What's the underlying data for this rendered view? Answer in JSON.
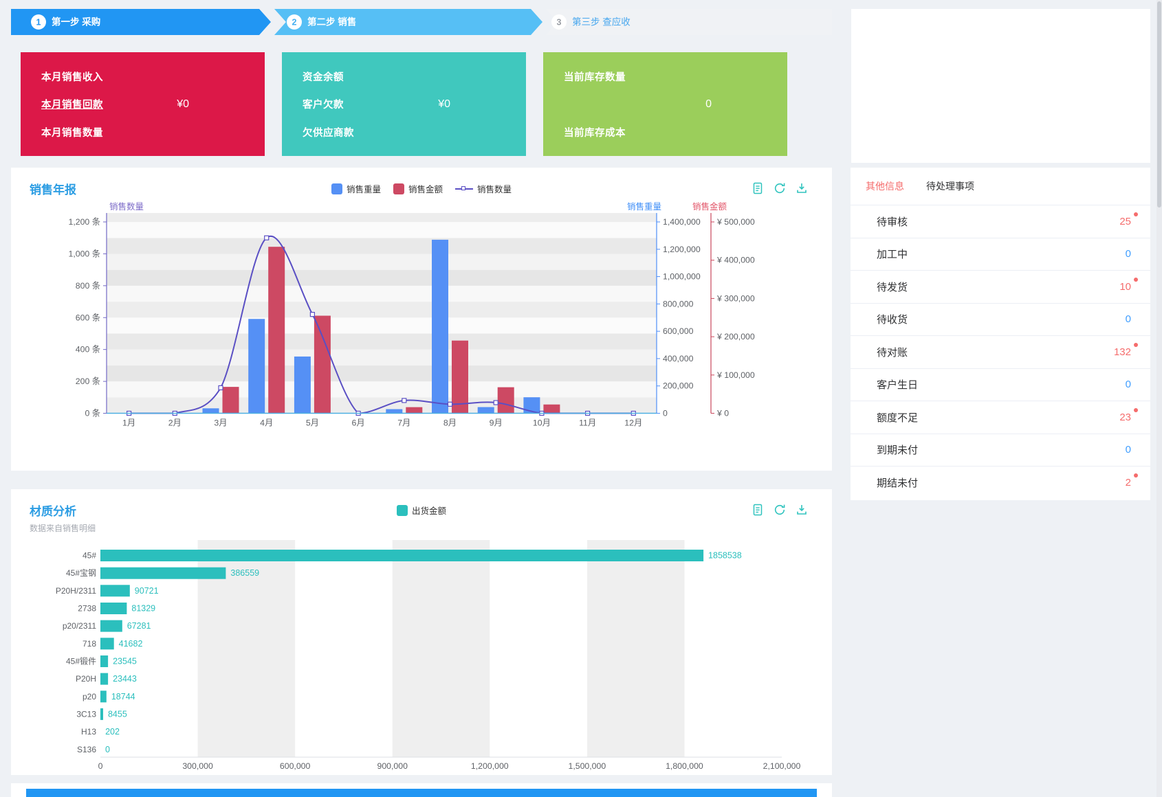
{
  "wizard": {
    "steps": [
      {
        "num": "1",
        "label": "第一步 采购",
        "bg": "#2196F3",
        "text_color": "#ffffff",
        "num_color": "#2196F3",
        "active": true
      },
      {
        "num": "2",
        "label": "第二步 销售",
        "bg": "#56BFF5",
        "text_color": "#ffffff",
        "num_color": "#42AEF0",
        "active": true
      },
      {
        "num": "3",
        "label": "第三步 查应收",
        "bg": "#F0F2F5",
        "text_color": "#47A7EE",
        "num_color": "#9A9EA5",
        "active": false
      }
    ]
  },
  "metric_cards": [
    {
      "bg": "#DC1848",
      "rows": [
        {
          "label": "本月销售收入",
          "value": "",
          "underline": false
        },
        {
          "label": "本月销售回款",
          "value": "¥0",
          "underline": true
        },
        {
          "label": "本月销售数量",
          "value": "",
          "underline": false
        }
      ]
    },
    {
      "bg": "#40C8BE",
      "rows": [
        {
          "label": "资金余额",
          "value": "",
          "underline": false
        },
        {
          "label": "客户欠款",
          "value": "¥0",
          "underline": false
        },
        {
          "label": "欠供应商款",
          "value": "",
          "underline": false
        }
      ]
    },
    {
      "bg": "#9BCE5B",
      "rows": [
        {
          "label": "当前库存数量",
          "value": "",
          "underline": false
        },
        {
          "label": "",
          "value": "0",
          "underline": false
        },
        {
          "label": "当前库存成本",
          "value": "",
          "underline": false
        }
      ]
    }
  ],
  "chart_data": [
    {
      "type": "bar+line",
      "title": "销售年报",
      "categories": [
        "1月",
        "2月",
        "3月",
        "4月",
        "5月",
        "6月",
        "7月",
        "8月",
        "9月",
        "10月",
        "11月",
        "12月"
      ],
      "series": [
        {
          "name": "销售重量",
          "type": "bar",
          "axis": "weight",
          "color": "#5590F5",
          "values": [
            0,
            0,
            36000,
            690000,
            415000,
            0,
            30000,
            1270000,
            45000,
            117000,
            0,
            0
          ]
        },
        {
          "name": "销售金额",
          "type": "bar",
          "axis": "amount",
          "color": "#CD4963",
          "values": [
            0,
            0,
            69000,
            435000,
            255000,
            0,
            16000,
            190000,
            68000,
            23000,
            0,
            0
          ]
        },
        {
          "name": "销售数量",
          "type": "line",
          "axis": "count",
          "color": "#5A4FC4",
          "values": [
            0,
            0,
            160,
            1100,
            620,
            0,
            80,
            57,
            67,
            0,
            0,
            0
          ]
        }
      ],
      "axes": {
        "count": {
          "title": "销售数量",
          "min": 0,
          "max": 1200,
          "step": 200,
          "suffix": " 条",
          "prefix": "",
          "color": "#7268C5",
          "title_color": "#7C6BC8"
        },
        "weight": {
          "title": "销售重量",
          "min": 0,
          "max": 1400000,
          "step": 200000,
          "suffix": "",
          "prefix": "",
          "color": "#4E8EF7",
          "title_color": "#3E8EF7"
        },
        "amount": {
          "title": "销售金额",
          "min": 0,
          "max": 500000,
          "step": 100000,
          "suffix": "",
          "prefix": "¥ ",
          "color": "#C9475C",
          "title_color": "#E25569"
        }
      },
      "legend_position": "top-center",
      "grid": "striped-horizontal"
    },
    {
      "type": "bar-horizontal",
      "title": "材质分析",
      "subtitle": "数据来自销售明细",
      "legend": "出货金额",
      "color": "#2BBFBD",
      "categories": [
        "45#",
        "45#宝钢",
        "P20H/2311",
        "2738",
        "p20/2311",
        "718",
        "45#锻件",
        "P20H",
        "p20",
        "3C13",
        "H13",
        "S136"
      ],
      "values": [
        1858538,
        386559,
        90721,
        81329,
        67281,
        41682,
        23545,
        23443,
        18744,
        8455,
        202,
        0
      ],
      "xmin": 0,
      "xmax": 2100000,
      "xstep": 300000,
      "x_ticks": [
        "0",
        "300,000",
        "600,000",
        "900,000",
        "1,200,000",
        "1,500,000",
        "1,800,000",
        "2,100,000"
      ],
      "grid": "striped-vertical"
    }
  ],
  "todo": {
    "tabs": [
      {
        "label": "其他信息",
        "active": true
      },
      {
        "label": "待处理事项",
        "active": false
      }
    ],
    "items": [
      {
        "label": "待审核",
        "value": "25",
        "hot": true
      },
      {
        "label": "加工中",
        "value": "0",
        "hot": false
      },
      {
        "label": "待发货",
        "value": "10",
        "hot": true
      },
      {
        "label": "待收货",
        "value": "0",
        "hot": false
      },
      {
        "label": "待对账",
        "value": "132",
        "hot": true
      },
      {
        "label": "客户生日",
        "value": "0",
        "hot": false
      },
      {
        "label": "额度不足",
        "value": "23",
        "hot": true
      },
      {
        "label": "到期未付",
        "value": "0",
        "hot": false
      },
      {
        "label": "期结未付",
        "value": "2",
        "hot": true
      }
    ],
    "value_colors": {
      "hot": "#F56C6C",
      "normal": "#409EFF"
    }
  },
  "toolbar_icons": {
    "names": [
      "form-icon",
      "refresh-icon",
      "download-icon"
    ],
    "color": "#2FC3BE"
  }
}
